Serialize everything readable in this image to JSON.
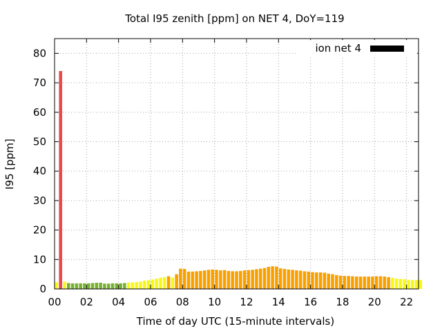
{
  "chart_data": {
    "type": "bar",
    "title": "Total I95 zenith [ppm] on NET 4, DoY=119",
    "xlabel": "Time of day UTC (15-minute intervals)",
    "ylabel": "I95 [ppm]",
    "xlim": [
      0,
      22.75
    ],
    "ylim": [
      0,
      85
    ],
    "xticks": [
      "00",
      "02",
      "04",
      "06",
      "08",
      "10",
      "12",
      "14",
      "16",
      "18",
      "20",
      "22"
    ],
    "yticks": [
      "0",
      "10",
      "20",
      "30",
      "40",
      "50",
      "60",
      "70",
      "80"
    ],
    "grid": true,
    "legend": {
      "position": "top-right",
      "label": "ion net 4",
      "color": "#000000"
    },
    "colors": {
      "red": "#e84848",
      "green": "#78b030",
      "yellow": "#f8f818",
      "orange": "#f8a000"
    },
    "interval_hours": 0.25,
    "series": [
      {
        "values": [
          2.3,
          74,
          2.5,
          2.0,
          1.9,
          1.9,
          1.9,
          1.9,
          1.9,
          2.0,
          2.1,
          2.1,
          1.8,
          1.8,
          1.9,
          1.9,
          1.9,
          2.0,
          2.2,
          2.2,
          2.3,
          2.5,
          2.8,
          3.0,
          3.2,
          3.5,
          3.8,
          4.0,
          4.3,
          3.9,
          5.0,
          6.9,
          6.8,
          5.9,
          5.9,
          6.0,
          6.1,
          6.3,
          6.5,
          6.6,
          6.5,
          6.3,
          6.4,
          6.1,
          6.0,
          6.0,
          6.1,
          6.3,
          6.4,
          6.5,
          6.7,
          6.9,
          7.1,
          7.5,
          7.7,
          7.6,
          7.0,
          6.8,
          6.6,
          6.5,
          6.3,
          6.2,
          6.0,
          5.9,
          5.7,
          5.6,
          5.6,
          5.5,
          5.2,
          5.0,
          4.7,
          4.5,
          4.4,
          4.4,
          4.3,
          4.2,
          4.2,
          4.2,
          4.2,
          4.2,
          4.3,
          4.3,
          4.2,
          4.0,
          3.8,
          3.5,
          3.4,
          3.3,
          3.1,
          3.0,
          3.0,
          3.0
        ],
        "colors": [
          "yellow",
          "red",
          "yellow",
          "green",
          "green",
          "green",
          "green",
          "green",
          "green",
          "green",
          "green",
          "green",
          "green",
          "green",
          "green",
          "green",
          "green",
          "green",
          "yellow",
          "yellow",
          "yellow",
          "yellow",
          "yellow",
          "yellow",
          "yellow",
          "yellow",
          "yellow",
          "yellow",
          "orange",
          "yellow",
          "orange",
          "orange",
          "orange",
          "orange",
          "orange",
          "orange",
          "orange",
          "orange",
          "orange",
          "orange",
          "orange",
          "orange",
          "orange",
          "orange",
          "orange",
          "orange",
          "orange",
          "orange",
          "orange",
          "orange",
          "orange",
          "orange",
          "orange",
          "orange",
          "orange",
          "orange",
          "orange",
          "orange",
          "orange",
          "orange",
          "orange",
          "orange",
          "orange",
          "orange",
          "orange",
          "orange",
          "orange",
          "orange",
          "orange",
          "orange",
          "orange",
          "orange",
          "orange",
          "orange",
          "orange",
          "orange",
          "orange",
          "orange",
          "orange",
          "orange",
          "orange",
          "orange",
          "orange",
          "orange",
          "yellow",
          "yellow",
          "yellow",
          "yellow",
          "yellow",
          "yellow",
          "yellow",
          "yellow"
        ]
      }
    ]
  }
}
